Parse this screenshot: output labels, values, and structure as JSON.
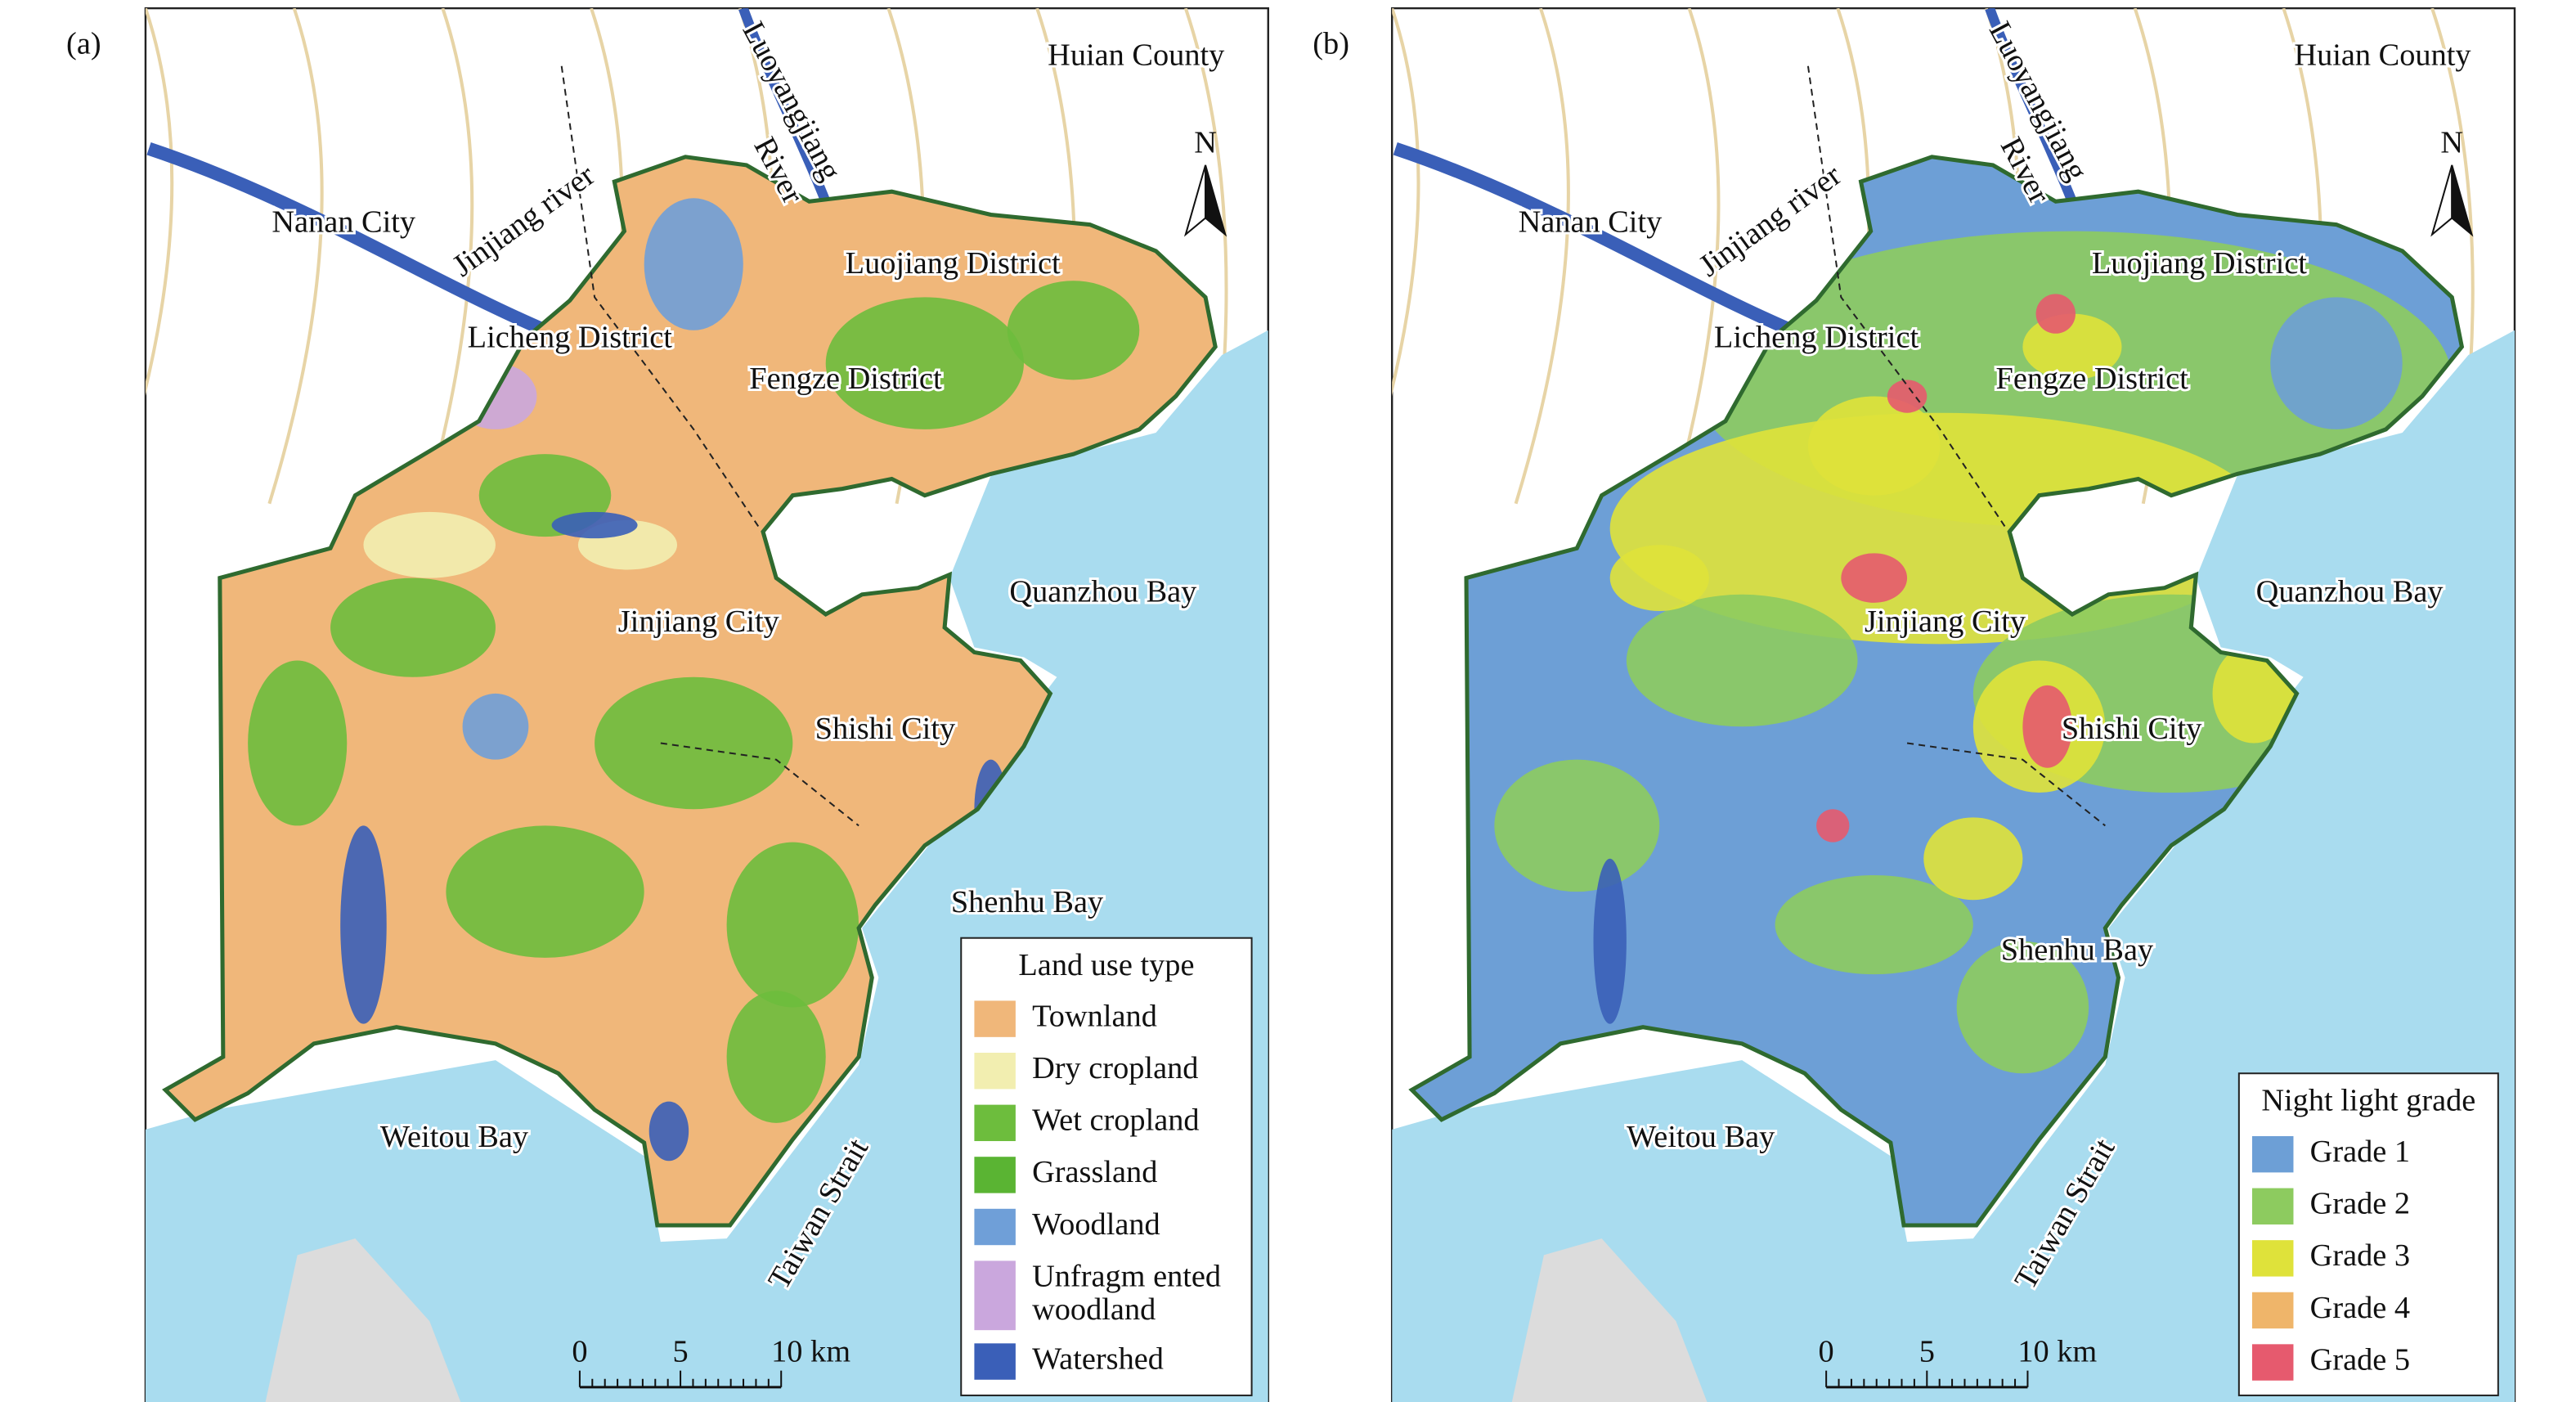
{
  "panels": [
    {
      "label": "(a)",
      "places": [
        "Huian County",
        "Luoyangjiang",
        "River",
        "Jinjiang river",
        "Nanan City",
        "Luojiang District",
        "Licheng District",
        "Fengze District",
        "Quanzhou Bay",
        "Jinjiang City",
        "Shishi City",
        "Shenhu Bay",
        "Weitou Bay",
        "Taiwan Strait"
      ],
      "north": "N",
      "scale_labels": [
        "0",
        "5",
        "10 km"
      ],
      "legend": {
        "title": "Land use type",
        "items": [
          {
            "name": "Townland",
            "color": "#f0b77a"
          },
          {
            "name": "Dry cropland",
            "color": "#f2eeb0"
          },
          {
            "name": "Wet cropland",
            "color": "#6dbd3d"
          },
          {
            "name": "Grassland",
            "color": "#5ab433"
          },
          {
            "name": "Woodland",
            "color": "#6f9fd8"
          },
          {
            "name": "Unfragm ented woodland",
            "color": "#caa7dd"
          },
          {
            "name": "Watershed",
            "color": "#3a5fb8"
          }
        ]
      }
    },
    {
      "label": "(b)",
      "places": [
        "Huian County",
        "Luoyangjiang",
        "River",
        "Jinjiang river",
        "Nanan City",
        "Luojiang District",
        "Licheng District",
        "Fengze District",
        "Quanzhou Bay",
        "Jinjiang City",
        "Shishi City",
        "Shenhu Bay",
        "Weitou Bay",
        "Taiwan Strait"
      ],
      "north": "N",
      "scale_labels": [
        "0",
        "5",
        "10 km"
      ],
      "legend": {
        "title": "Night light grade",
        "items": [
          {
            "name": "Grade 1",
            "color": "#6d9fd6"
          },
          {
            "name": "Grade 2",
            "color": "#8dcb5f"
          },
          {
            "name": "Grade 3",
            "color": "#dfe23a"
          },
          {
            "name": "Grade 4",
            "color": "#efb56a"
          },
          {
            "name": "Grade 5",
            "color": "#e65a6e"
          }
        ]
      }
    }
  ]
}
